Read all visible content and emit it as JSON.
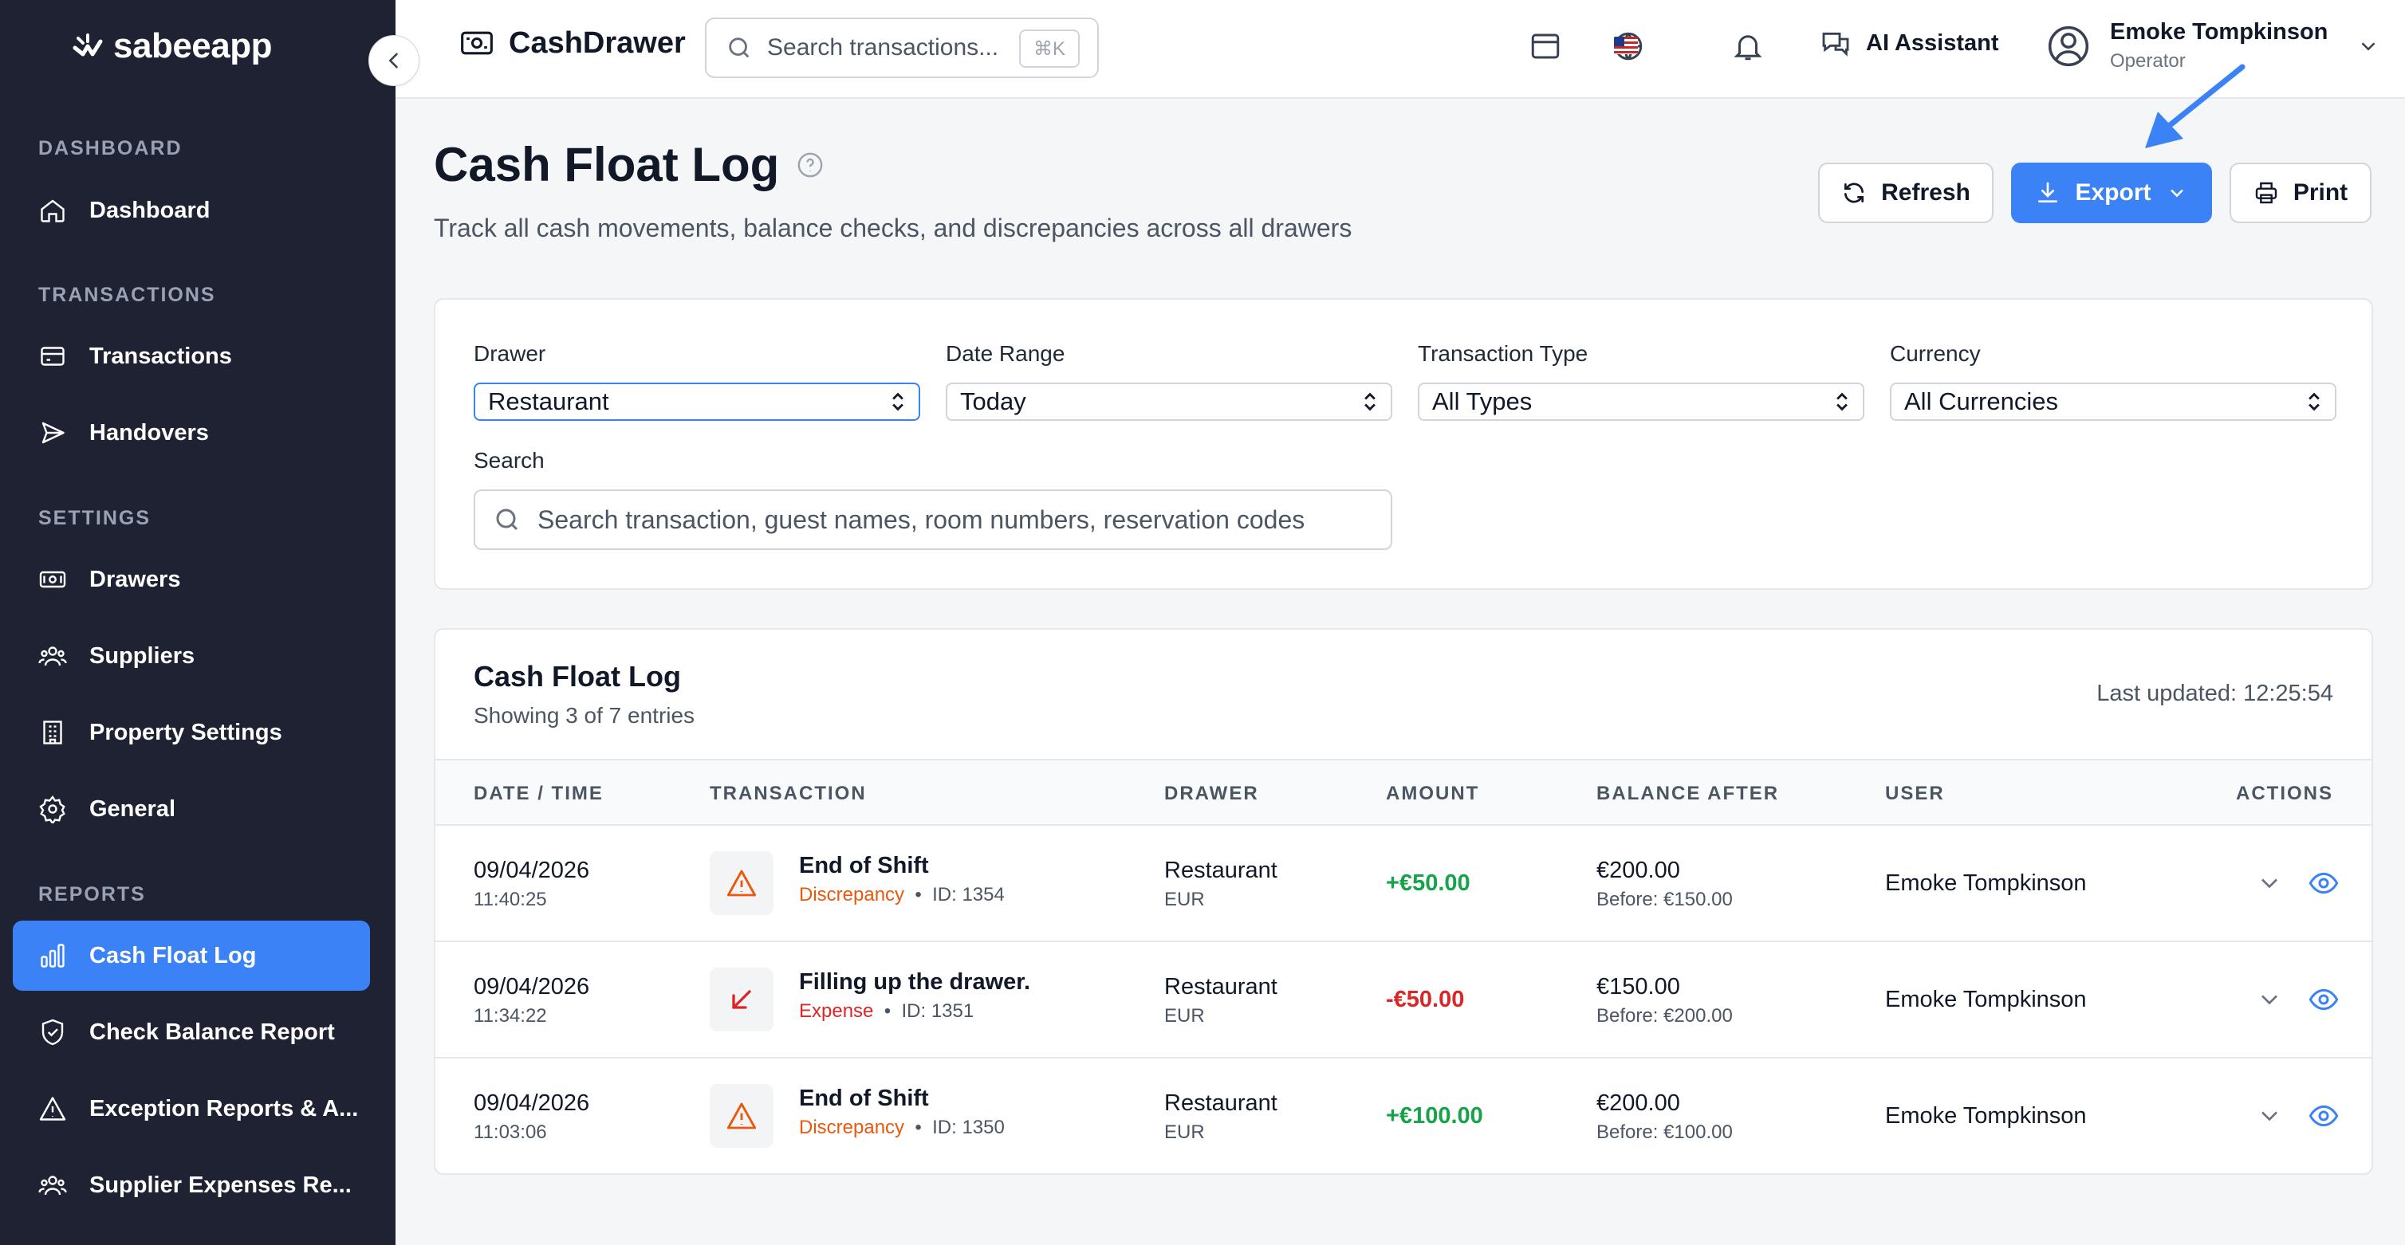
{
  "sidebar": {
    "logo": "sabeeapp",
    "sections": {
      "dashboard": "DASHBOARD",
      "transactions": "TRANSACTIONS",
      "settings": "SETTINGS",
      "reports": "REPORTS"
    },
    "items": {
      "dashboard": "Dashboard",
      "transactions": "Transactions",
      "handovers": "Handovers",
      "drawers": "Drawers",
      "suppliers": "Suppliers",
      "property_settings": "Property Settings",
      "general": "General",
      "cash_float_log": "Cash Float Log",
      "check_balance_report": "Check Balance Report",
      "exception_reports": "Exception Reports & A...",
      "supplier_expenses": "Supplier Expenses Re..."
    }
  },
  "topbar": {
    "app_name": "CashDrawer",
    "search_placeholder": "Search transactions...",
    "search_shortcut": "⌘K",
    "ai_assistant": "AI Assistant",
    "user_name": "Emoke Tompkinson",
    "user_role": "Operator"
  },
  "page": {
    "title": "Cash Float Log",
    "subtitle": "Track all cash movements, balance checks, and discrepancies across all drawers",
    "buttons": {
      "refresh": "Refresh",
      "export": "Export",
      "print": "Print"
    }
  },
  "filters": {
    "drawer_label": "Drawer",
    "drawer_value": "Restaurant",
    "date_label": "Date Range",
    "date_value": "Today",
    "type_label": "Transaction Type",
    "type_value": "All Types",
    "currency_label": "Currency",
    "currency_value": "All Currencies",
    "search_label": "Search",
    "search_placeholder": "Search transaction, guest names, room numbers, reservation codes"
  },
  "table": {
    "title": "Cash Float Log",
    "showing": "Showing 3 of 7 entries",
    "last_updated": "Last updated: 12:25:54",
    "headers": {
      "date": "DATE / TIME",
      "transaction": "TRANSACTION",
      "drawer": "DRAWER",
      "amount": "AMOUNT",
      "balance": "BALANCE AFTER",
      "user": "USER",
      "actions": "ACTIONS"
    },
    "rows": [
      {
        "date": "09/04/2026",
        "time": "11:40:25",
        "title": "End of Shift",
        "type": "Discrepancy",
        "type_color": "#ea580c",
        "id": "ID: 1354",
        "icon": "warning-icon",
        "drawer": "Restaurant",
        "currency": "EUR",
        "amount": "+€50.00",
        "amount_sign": "positive",
        "balance": "€200.00",
        "before": "Before: €150.00",
        "user": "Emoke Tompkinson"
      },
      {
        "date": "09/04/2026",
        "time": "11:34:22",
        "title": "Filling up the drawer.",
        "type": "Expense",
        "type_color": "#dc2626",
        "id": "ID: 1351",
        "icon": "arrow-down-left-icon",
        "drawer": "Restaurant",
        "currency": "EUR",
        "amount": "-€50.00",
        "amount_sign": "negative",
        "balance": "€150.00",
        "before": "Before: €200.00",
        "user": "Emoke Tompkinson"
      },
      {
        "date": "09/04/2026",
        "time": "11:03:06",
        "title": "End of Shift",
        "type": "Discrepancy",
        "type_color": "#ea580c",
        "id": "ID: 1350",
        "icon": "warning-icon",
        "drawer": "Restaurant",
        "currency": "EUR",
        "amount": "+€100.00",
        "amount_sign": "positive",
        "balance": "€200.00",
        "before": "Before: €100.00",
        "user": "Emoke Tompkinson"
      }
    ]
  },
  "colors": {
    "sidebar_bg": "#1e2233",
    "accent": "#3b82f6",
    "positive": "#16a34a",
    "negative": "#dc2626",
    "discrepancy": "#ea580c"
  }
}
